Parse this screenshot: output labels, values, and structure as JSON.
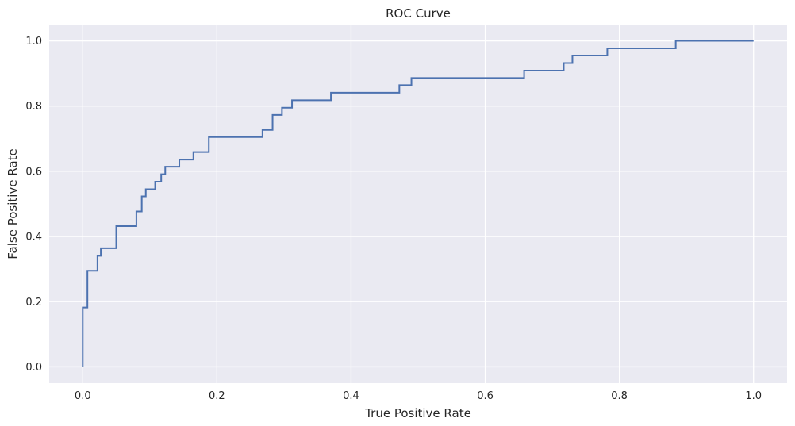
{
  "chart_data": {
    "type": "line",
    "title": "ROC Curve",
    "xlabel": "True Positive Rate",
    "ylabel": "False Positive Rate",
    "xlim": [
      -0.05,
      1.05
    ],
    "ylim": [
      -0.05,
      1.05
    ],
    "xticks": [
      0.0,
      0.2,
      0.4,
      0.6,
      0.8,
      1.0
    ],
    "yticks": [
      0.0,
      0.2,
      0.4,
      0.6,
      0.8,
      1.0
    ],
    "xtick_labels": [
      "0.0",
      "0.2",
      "0.4",
      "0.6",
      "0.8",
      "1.0"
    ],
    "ytick_labels": [
      "0.0",
      "0.2",
      "0.4",
      "0.6",
      "0.8",
      "1.0"
    ],
    "grid": true,
    "background_color": "#eaeaf2",
    "grid_color": "#ffffff",
    "series": [
      {
        "color": "#4c72b0",
        "step": true,
        "x": [
          0.0,
          0.0,
          0.007,
          0.007,
          0.022,
          0.022,
          0.027,
          0.027,
          0.05,
          0.05,
          0.08,
          0.08,
          0.088,
          0.088,
          0.094,
          0.094,
          0.108,
          0.108,
          0.117,
          0.117,
          0.123,
          0.123,
          0.144,
          0.144,
          0.165,
          0.165,
          0.188,
          0.188,
          0.268,
          0.268,
          0.283,
          0.283,
          0.297,
          0.297,
          0.312,
          0.312,
          0.37,
          0.37,
          0.472,
          0.472,
          0.49,
          0.49,
          0.658,
          0.658,
          0.717,
          0.717,
          0.73,
          0.73,
          0.782,
          0.782,
          0.884,
          0.884,
          1.0
        ],
        "y": [
          0.0,
          0.182,
          0.182,
          0.295,
          0.295,
          0.341,
          0.341,
          0.364,
          0.364,
          0.432,
          0.432,
          0.477,
          0.477,
          0.523,
          0.523,
          0.545,
          0.545,
          0.568,
          0.568,
          0.591,
          0.591,
          0.614,
          0.614,
          0.636,
          0.636,
          0.659,
          0.659,
          0.705,
          0.705,
          0.727,
          0.727,
          0.773,
          0.773,
          0.795,
          0.795,
          0.818,
          0.818,
          0.841,
          0.841,
          0.864,
          0.864,
          0.886,
          0.886,
          0.909,
          0.909,
          0.932,
          0.932,
          0.955,
          0.955,
          0.977,
          0.977,
          1.0,
          1.0
        ]
      }
    ]
  }
}
